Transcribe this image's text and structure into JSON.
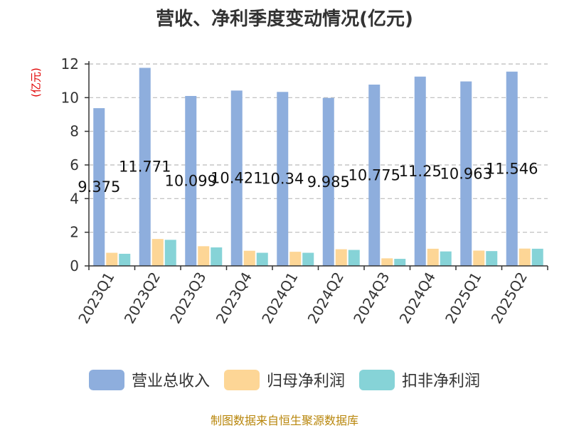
{
  "chart_data": {
    "type": "bar",
    "title": "营收、净利季度变动情况(亿元)",
    "ylabel": "(亿元)",
    "xlabel": "",
    "ylim": [
      0,
      12
    ],
    "yticks": [
      0,
      2,
      4,
      6,
      8,
      10,
      12
    ],
    "grid": true,
    "legend_position": "bottom",
    "categories": [
      "2023Q1",
      "2023Q2",
      "2023Q3",
      "2023Q4",
      "2024Q1",
      "2024Q2",
      "2024Q3",
      "2024Q4",
      "2025Q1",
      "2025Q2"
    ],
    "series": [
      {
        "name": "营业总收入",
        "color": "#8eaedd",
        "values": [
          9.375,
          11.771,
          10.099,
          10.421,
          10.34,
          9.985,
          10.775,
          11.25,
          10.963,
          11.546
        ]
      },
      {
        "name": "归母净利润",
        "color": "#fdd696",
        "values": [
          0.78,
          1.6,
          1.17,
          0.9,
          0.84,
          0.99,
          0.45,
          1.02,
          0.91,
          1.03
        ]
      },
      {
        "name": "扣非净利润",
        "color": "#86d3d7",
        "values": [
          0.72,
          1.55,
          1.1,
          0.78,
          0.78,
          0.95,
          0.42,
          0.86,
          0.88,
          1.02
        ]
      }
    ],
    "data_labels": [
      "9.375",
      "11.771",
      "10.099",
      "10.421",
      "10.34",
      "9.985",
      "10.775",
      "11.25",
      "10.963",
      "11.546"
    ]
  },
  "source": "制图数据来自恒生聚源数据库"
}
